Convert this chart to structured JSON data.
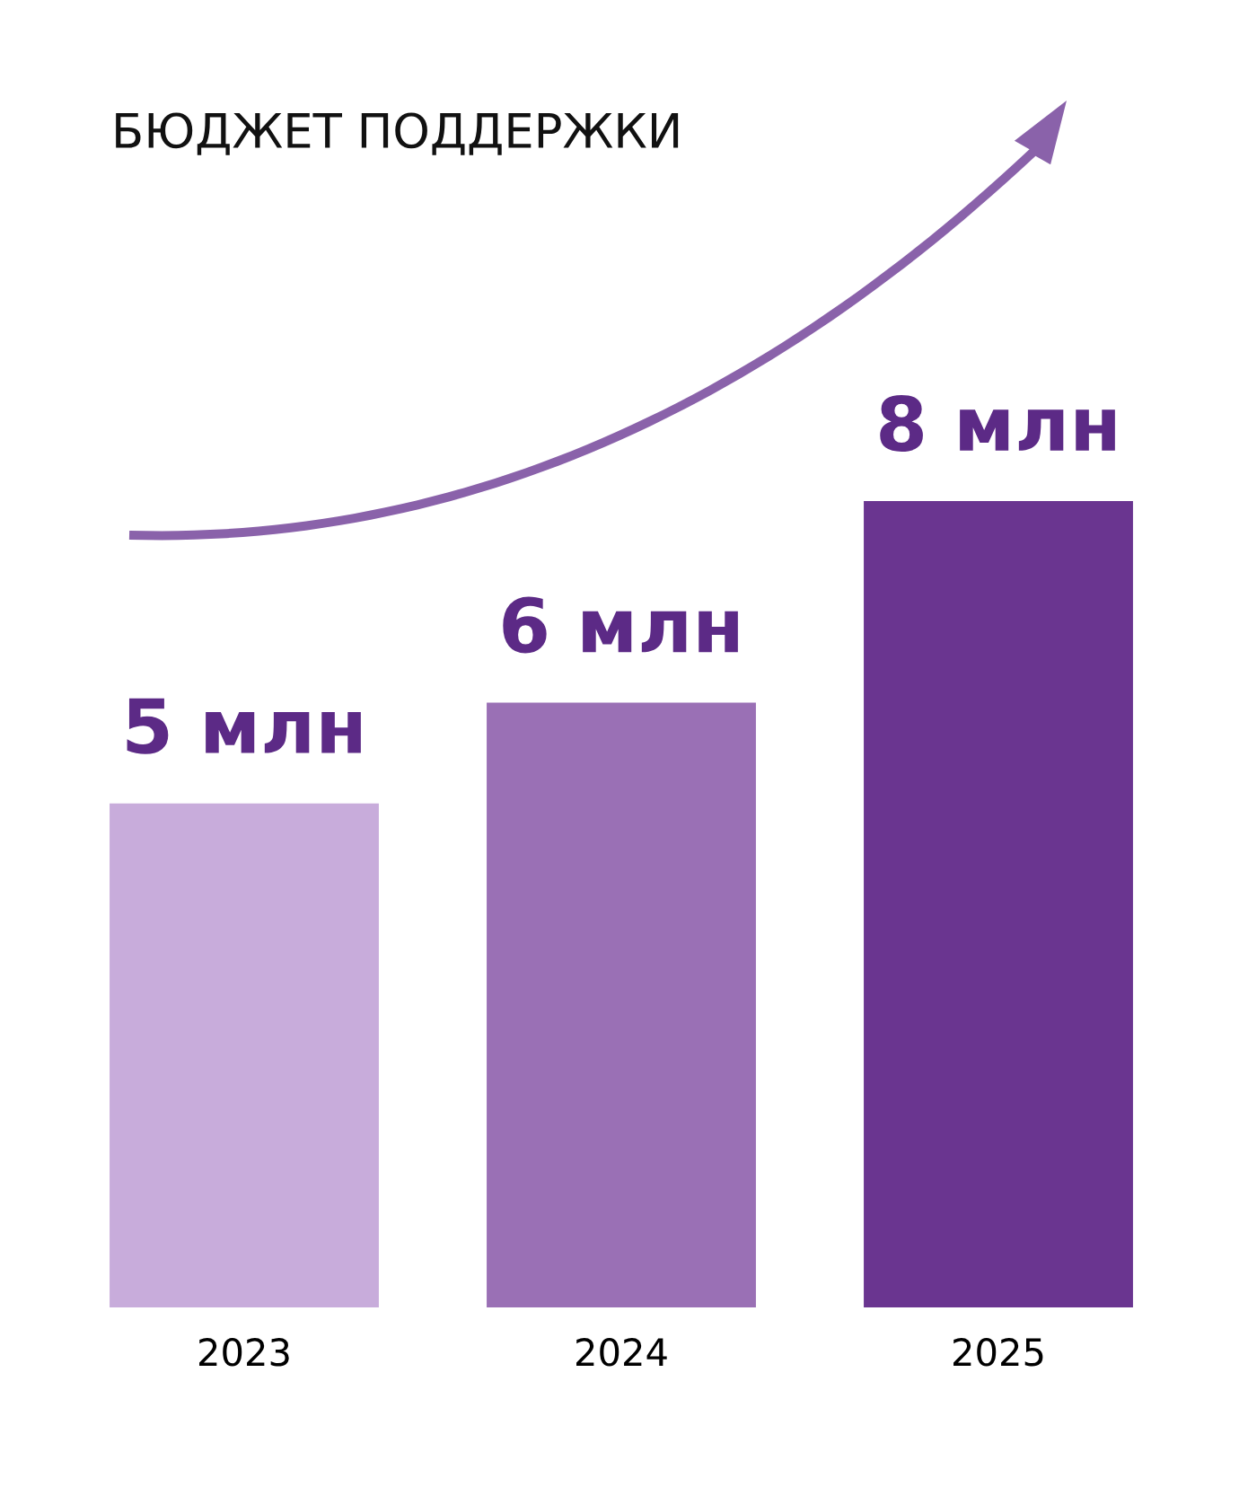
{
  "chart_data": {
    "type": "bar",
    "title": "БЮДЖЕТ ПОДДЕРЖКИ",
    "categories": [
      "2023",
      "2024",
      "2025"
    ],
    "values": [
      5,
      6,
      8
    ],
    "colors": [
      "#c8acdb",
      "#9a70b5",
      "#6a3590"
    ],
    "value_labels": [
      "5 млн",
      "6 млн",
      "8 млн"
    ],
    "grid": false,
    "legend": false
  }
}
